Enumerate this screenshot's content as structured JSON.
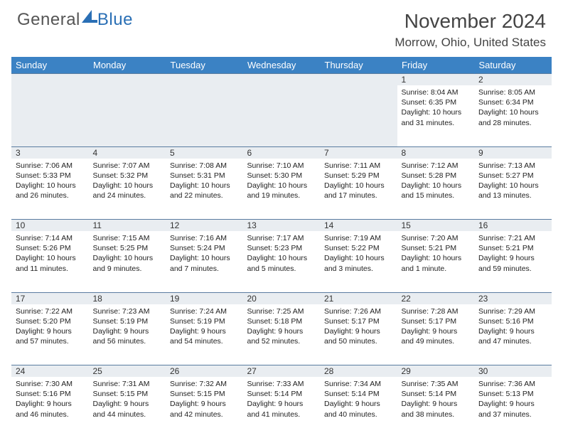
{
  "brand": {
    "part1": "General",
    "part2": "Blue",
    "sail_color": "#2a6fb5"
  },
  "header": {
    "title": "November 2024",
    "location": "Morrow, Ohio, United States"
  },
  "colors": {
    "header_bg": "#3b82c4",
    "header_fg": "#ffffff",
    "daynum_bg": "#e9edf1",
    "border": "#5a7ca0"
  },
  "weekdays": [
    "Sunday",
    "Monday",
    "Tuesday",
    "Wednesday",
    "Thursday",
    "Friday",
    "Saturday"
  ],
  "weeks": [
    [
      null,
      null,
      null,
      null,
      null,
      {
        "d": "1",
        "sr": "8:04 AM",
        "ss": "6:35 PM",
        "dl": "10 hours and 31 minutes."
      },
      {
        "d": "2",
        "sr": "8:05 AM",
        "ss": "6:34 PM",
        "dl": "10 hours and 28 minutes."
      }
    ],
    [
      {
        "d": "3",
        "sr": "7:06 AM",
        "ss": "5:33 PM",
        "dl": "10 hours and 26 minutes."
      },
      {
        "d": "4",
        "sr": "7:07 AM",
        "ss": "5:32 PM",
        "dl": "10 hours and 24 minutes."
      },
      {
        "d": "5",
        "sr": "7:08 AM",
        "ss": "5:31 PM",
        "dl": "10 hours and 22 minutes."
      },
      {
        "d": "6",
        "sr": "7:10 AM",
        "ss": "5:30 PM",
        "dl": "10 hours and 19 minutes."
      },
      {
        "d": "7",
        "sr": "7:11 AM",
        "ss": "5:29 PM",
        "dl": "10 hours and 17 minutes."
      },
      {
        "d": "8",
        "sr": "7:12 AM",
        "ss": "5:28 PM",
        "dl": "10 hours and 15 minutes."
      },
      {
        "d": "9",
        "sr": "7:13 AM",
        "ss": "5:27 PM",
        "dl": "10 hours and 13 minutes."
      }
    ],
    [
      {
        "d": "10",
        "sr": "7:14 AM",
        "ss": "5:26 PM",
        "dl": "10 hours and 11 minutes."
      },
      {
        "d": "11",
        "sr": "7:15 AM",
        "ss": "5:25 PM",
        "dl": "10 hours and 9 minutes."
      },
      {
        "d": "12",
        "sr": "7:16 AM",
        "ss": "5:24 PM",
        "dl": "10 hours and 7 minutes."
      },
      {
        "d": "13",
        "sr": "7:17 AM",
        "ss": "5:23 PM",
        "dl": "10 hours and 5 minutes."
      },
      {
        "d": "14",
        "sr": "7:19 AM",
        "ss": "5:22 PM",
        "dl": "10 hours and 3 minutes."
      },
      {
        "d": "15",
        "sr": "7:20 AM",
        "ss": "5:21 PM",
        "dl": "10 hours and 1 minute."
      },
      {
        "d": "16",
        "sr": "7:21 AM",
        "ss": "5:21 PM",
        "dl": "9 hours and 59 minutes."
      }
    ],
    [
      {
        "d": "17",
        "sr": "7:22 AM",
        "ss": "5:20 PM",
        "dl": "9 hours and 57 minutes."
      },
      {
        "d": "18",
        "sr": "7:23 AM",
        "ss": "5:19 PM",
        "dl": "9 hours and 56 minutes."
      },
      {
        "d": "19",
        "sr": "7:24 AM",
        "ss": "5:19 PM",
        "dl": "9 hours and 54 minutes."
      },
      {
        "d": "20",
        "sr": "7:25 AM",
        "ss": "5:18 PM",
        "dl": "9 hours and 52 minutes."
      },
      {
        "d": "21",
        "sr": "7:26 AM",
        "ss": "5:17 PM",
        "dl": "9 hours and 50 minutes."
      },
      {
        "d": "22",
        "sr": "7:28 AM",
        "ss": "5:17 PM",
        "dl": "9 hours and 49 minutes."
      },
      {
        "d": "23",
        "sr": "7:29 AM",
        "ss": "5:16 PM",
        "dl": "9 hours and 47 minutes."
      }
    ],
    [
      {
        "d": "24",
        "sr": "7:30 AM",
        "ss": "5:16 PM",
        "dl": "9 hours and 46 minutes."
      },
      {
        "d": "25",
        "sr": "7:31 AM",
        "ss": "5:15 PM",
        "dl": "9 hours and 44 minutes."
      },
      {
        "d": "26",
        "sr": "7:32 AM",
        "ss": "5:15 PM",
        "dl": "9 hours and 42 minutes."
      },
      {
        "d": "27",
        "sr": "7:33 AM",
        "ss": "5:14 PM",
        "dl": "9 hours and 41 minutes."
      },
      {
        "d": "28",
        "sr": "7:34 AM",
        "ss": "5:14 PM",
        "dl": "9 hours and 40 minutes."
      },
      {
        "d": "29",
        "sr": "7:35 AM",
        "ss": "5:14 PM",
        "dl": "9 hours and 38 minutes."
      },
      {
        "d": "30",
        "sr": "7:36 AM",
        "ss": "5:13 PM",
        "dl": "9 hours and 37 minutes."
      }
    ]
  ],
  "labels": {
    "sunrise": "Sunrise: ",
    "sunset": "Sunset: ",
    "daylight": "Daylight: "
  }
}
